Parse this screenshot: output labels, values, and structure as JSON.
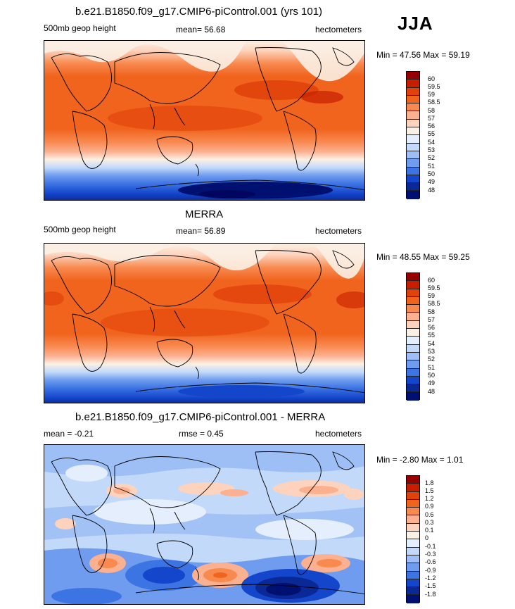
{
  "season": "JJA",
  "panels": [
    {
      "title": "b.e21.B1850.f09_g17.CMIP6-piControl.001 (yrs 101)",
      "left_label": "500mb geop height",
      "center_label": "mean=  56.68",
      "right_label": "hectometers",
      "minmax": "Min =  47.56 Max =  59.19"
    },
    {
      "title": "MERRA",
      "left_label": "500mb geop height",
      "center_label": "mean=  56.89",
      "right_label": "hectometers",
      "minmax": "Min =  48.55 Max =  59.25"
    },
    {
      "title": "b.e21.B1850.f09_g17.CMIP6-piControl.001 - MERRA",
      "left_label": "mean =  -0.21",
      "center_label": "rmse =   0.45",
      "right_label": "hectometers",
      "minmax": "Min =  -2.80 Max =   1.01"
    }
  ],
  "colorbar_abs": {
    "labels": [
      "60",
      "59.5",
      "59",
      "58.5",
      "58",
      "57",
      "56",
      "55",
      "54",
      "53",
      "52",
      "51",
      "50",
      "49",
      "48"
    ],
    "colors": [
      "#960000",
      "#c81e00",
      "#e1410a",
      "#f0641e",
      "#f88a50",
      "#fbb090",
      "#fdd3bd",
      "#fbf0e4",
      "#e4eefc",
      "#c2d9fa",
      "#9ebff5",
      "#6f9cee",
      "#3d74e3",
      "#1446cc",
      "#0a2896",
      "#001070"
    ]
  },
  "colorbar_diff": {
    "labels": [
      "1.8",
      "1.5",
      "1.2",
      "0.9",
      "0.6",
      "0.3",
      "0.1",
      "0",
      "-0.1",
      "-0.3",
      "-0.6",
      "-0.9",
      "-1.2",
      "-1.5",
      "-1.8"
    ],
    "colors": [
      "#960000",
      "#c81e00",
      "#e1410a",
      "#f0641e",
      "#f88a50",
      "#fbb090",
      "#fdd3bd",
      "#fbf0e4",
      "#e4eefc",
      "#c2d9fa",
      "#9ebff5",
      "#6f9cee",
      "#3d74e3",
      "#1446cc",
      "#0a2896",
      "#001070"
    ]
  }
}
